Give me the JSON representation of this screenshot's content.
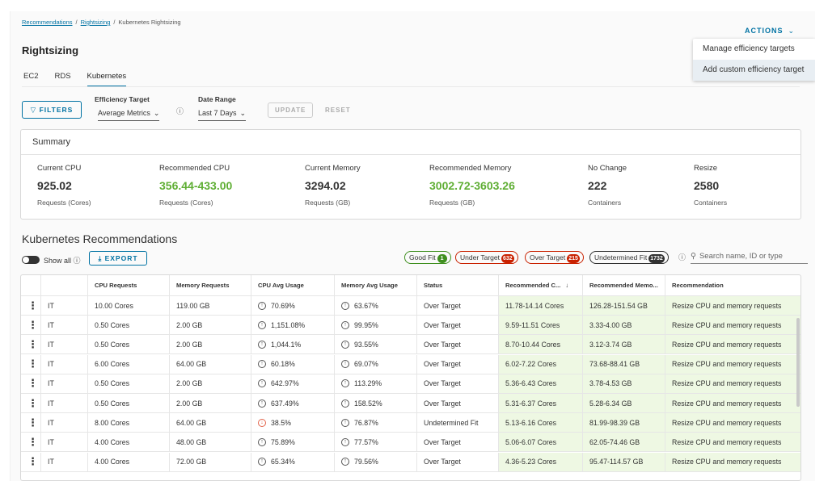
{
  "breadcrumb": [
    "Recommendations",
    "Rightsizing",
    "Kubernetes Rightsizing"
  ],
  "actions": {
    "label": "ACTIONS",
    "menu": [
      "Manage efficiency targets",
      "Add custom efficiency target"
    ]
  },
  "page_title": "Rightsizing",
  "tabs": [
    "EC2",
    "RDS",
    "Kubernetes"
  ],
  "active_tab": "Kubernetes",
  "filters": {
    "button": "FILTERS",
    "efficiency_target": {
      "label": "Efficiency Target",
      "value": "Average Metrics"
    },
    "date_range": {
      "label": "Date Range",
      "value": "Last 7 Days"
    },
    "update": "UPDATE",
    "reset": "RESET"
  },
  "summary": {
    "title": "Summary",
    "items": [
      {
        "label": "Current CPU",
        "value": "925.02",
        "sub": "Requests (Cores)",
        "accent": false
      },
      {
        "label": "Recommended CPU",
        "value": "356.44-433.00",
        "sub": "Requests (Cores)",
        "accent": true
      },
      {
        "label": "Current Memory",
        "value": "3294.02",
        "sub": "Requests (GB)",
        "accent": false
      },
      {
        "label": "Recommended Memory",
        "value": "3002.72-3603.26",
        "sub": "Requests (GB)",
        "accent": true
      },
      {
        "label": "No Change",
        "value": "222",
        "sub": "Containers",
        "accent": false
      },
      {
        "label": "Resize",
        "value": "2580",
        "sub": "Containers",
        "accent": false
      }
    ],
    "accent_color": "#5fae34"
  },
  "recommendations": {
    "title": "Kubernetes Recommendations",
    "show_all": "Show all",
    "export": "EXPORT",
    "status_pills": [
      {
        "label": "Good Fit",
        "count": "1",
        "color": "#3f8f1f"
      },
      {
        "label": "Under Target",
        "count": "632",
        "color": "#c92100"
      },
      {
        "label": "Over Target",
        "count": "215",
        "color": "#c92100"
      },
      {
        "label": "Undetermined Fit",
        "count": "1732",
        "color": "#313131"
      }
    ],
    "search_placeholder": "Search name, ID or type",
    "columns": [
      "",
      "",
      "CPU Requests",
      "Memory Requests",
      "CPU Avg Usage",
      "Memory Avg Usage",
      "Status",
      "Recommended C...",
      "Recommended Memo...",
      "Recommendation"
    ],
    "rows": [
      {
        "name": "IT",
        "cpu_req": "10.00 Cores",
        "mem_req": "119.00 GB",
        "cpu_avg": "70.69%",
        "cpu_trend": "up",
        "mem_avg": "63.67%",
        "mem_trend": "up",
        "status": "Over Target",
        "rec_cpu": "11.78-14.14 Cores",
        "rec_mem": "126.28-151.54 GB",
        "recommendation": "Resize CPU and memory requests"
      },
      {
        "name": "IT",
        "cpu_req": "0.50 Cores",
        "mem_req": "2.00 GB",
        "cpu_avg": "1,151.08%",
        "cpu_trend": "up",
        "mem_avg": "99.95%",
        "mem_trend": "up",
        "status": "Over Target",
        "rec_cpu": "9.59-11.51 Cores",
        "rec_mem": "3.33-4.00 GB",
        "recommendation": "Resize CPU and memory requests"
      },
      {
        "name": "IT",
        "cpu_req": "0.50 Cores",
        "mem_req": "2.00 GB",
        "cpu_avg": "1,044.1%",
        "cpu_trend": "up",
        "mem_avg": "93.55%",
        "mem_trend": "up",
        "status": "Over Target",
        "rec_cpu": "8.70-10.44 Cores",
        "rec_mem": "3.12-3.74 GB",
        "recommendation": "Resize CPU and memory requests"
      },
      {
        "name": "IT",
        "cpu_req": "6.00 Cores",
        "mem_req": "64.00 GB",
        "cpu_avg": "60.18%",
        "cpu_trend": "up",
        "mem_avg": "69.07%",
        "mem_trend": "up",
        "status": "Over Target",
        "rec_cpu": "6.02-7.22 Cores",
        "rec_mem": "73.68-88.41 GB",
        "recommendation": "Resize CPU and memory requests"
      },
      {
        "name": "IT",
        "cpu_req": "0.50 Cores",
        "mem_req": "2.00 GB",
        "cpu_avg": "642.97%",
        "cpu_trend": "up",
        "mem_avg": "113.29%",
        "mem_trend": "up",
        "status": "Over Target",
        "rec_cpu": "5.36-6.43 Cores",
        "rec_mem": "3.78-4.53 GB",
        "recommendation": "Resize CPU and memory requests"
      },
      {
        "name": "IT",
        "cpu_req": "0.50 Cores",
        "mem_req": "2.00 GB",
        "cpu_avg": "637.49%",
        "cpu_trend": "up",
        "mem_avg": "158.52%",
        "mem_trend": "up",
        "status": "Over Target",
        "rec_cpu": "5.31-6.37 Cores",
        "rec_mem": "5.28-6.34 GB",
        "recommendation": "Resize CPU and memory requests"
      },
      {
        "name": "IT",
        "cpu_req": "8.00 Cores",
        "mem_req": "64.00 GB",
        "cpu_avg": "38.5%",
        "cpu_trend": "down",
        "mem_avg": "76.87%",
        "mem_trend": "up",
        "status": "Undetermined Fit",
        "rec_cpu": "5.13-6.16 Cores",
        "rec_mem": "81.99-98.39 GB",
        "recommendation": "Resize CPU and memory requests"
      },
      {
        "name": "IT",
        "cpu_req": "4.00 Cores",
        "mem_req": "48.00 GB",
        "cpu_avg": "75.89%",
        "cpu_trend": "up",
        "mem_avg": "77.57%",
        "mem_trend": "up",
        "status": "Over Target",
        "rec_cpu": "5.06-6.07 Cores",
        "rec_mem": "62.05-74.46 GB",
        "recommendation": "Resize CPU and memory requests"
      },
      {
        "name": "IT",
        "cpu_req": "4.00 Cores",
        "mem_req": "72.00 GB",
        "cpu_avg": "65.34%",
        "cpu_trend": "up",
        "mem_avg": "79.56%",
        "mem_trend": "up",
        "status": "Over Target",
        "rec_cpu": "4.36-5.23 Cores",
        "rec_mem": "95.47-114.57 GB",
        "recommendation": "Resize CPU and memory requests"
      }
    ],
    "highlight_color": "#eef8e3"
  }
}
